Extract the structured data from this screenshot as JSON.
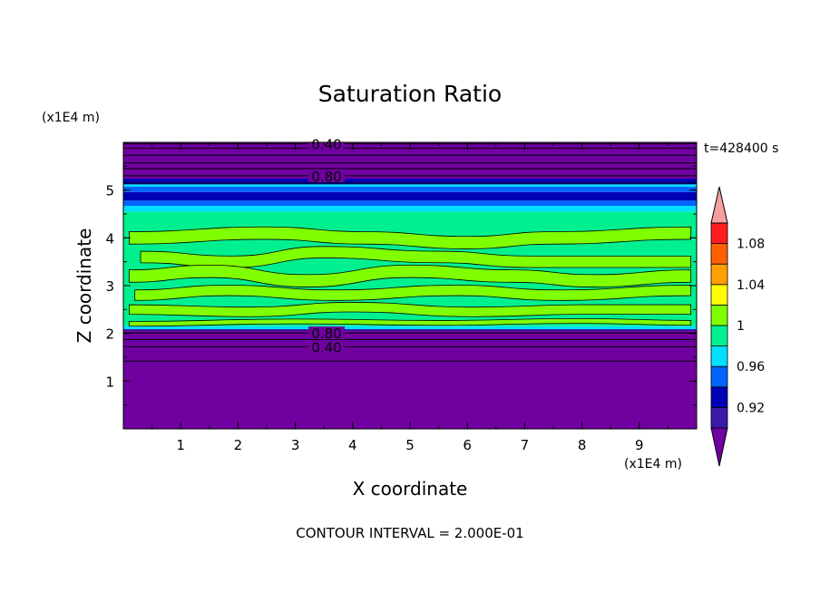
{
  "chart_data": {
    "type": "heatmap",
    "title": "Saturation Ratio",
    "xlabel": "X coordinate",
    "ylabel": "Z coordinate",
    "x_unit": "(x1E4 m)",
    "y_unit": "(x1E4 m)",
    "time_label": "t=428400 s",
    "footer": "CONTOUR INTERVAL = 2.000E-01",
    "xlim": [
      0,
      10
    ],
    "ylim": [
      0,
      6
    ],
    "x_ticks": [
      "1",
      "2",
      "3",
      "4",
      "5",
      "6",
      "7",
      "8",
      "9"
    ],
    "y_ticks": [
      "1",
      "2",
      "3",
      "4",
      "5"
    ],
    "colorbar": {
      "levels": [
        0.9,
        0.92,
        0.94,
        0.96,
        0.98,
        1.0,
        1.02,
        1.04,
        1.06,
        1.08,
        1.1
      ],
      "labels": [
        "0.92",
        "0.96",
        "1",
        "1.04",
        "1.08"
      ],
      "colors": [
        "#7000a0",
        "#3a1aa8",
        "#0000b4",
        "#0064ff",
        "#00e0ff",
        "#00f090",
        "#80ff00",
        "#ffff00",
        "#ffa000",
        "#ff6000",
        "#ff1e1e",
        "#f5a0a0"
      ]
    },
    "bands": [
      {
        "z0": 0.0,
        "z1": 2.05,
        "color": "#7000a0"
      },
      {
        "z0": 2.05,
        "z1": 2.09,
        "color": "#3a1aa8"
      },
      {
        "z0": 2.09,
        "z1": 2.15,
        "color": "#00e0ff"
      },
      {
        "z0": 2.15,
        "z1": 4.55,
        "color": "#00f090"
      },
      {
        "z0": 4.55,
        "z1": 4.67,
        "color": "#00e0ff"
      },
      {
        "z0": 4.67,
        "z1": 4.78,
        "color": "#0064ff"
      },
      {
        "z0": 4.78,
        "z1": 4.96,
        "color": "#0000b4"
      },
      {
        "z0": 4.96,
        "z1": 5.07,
        "color": "#0064ff"
      },
      {
        "z0": 5.07,
        "z1": 5.12,
        "color": "#00e0ff"
      },
      {
        "z0": 5.12,
        "z1": 5.24,
        "color": "#0000b4"
      },
      {
        "z0": 5.24,
        "z1": 6.0,
        "color": "#7000a0"
      }
    ],
    "contour_lines": [
      {
        "z": 1.42,
        "label": ""
      },
      {
        "z": 1.72,
        "label": "0.40"
      },
      {
        "z": 1.87,
        "label": ""
      },
      {
        "z": 2.01,
        "label": "0.80"
      },
      {
        "z": 5.15,
        "label": ""
      },
      {
        "z": 5.3,
        "label": "0.80"
      },
      {
        "z": 5.45,
        "label": ""
      },
      {
        "z": 5.57,
        "label": ""
      },
      {
        "z": 5.73,
        "label": ""
      },
      {
        "z": 5.88,
        "label": ""
      },
      {
        "z": 5.97,
        "label": "0.40"
      }
    ],
    "supersaturated_streaks": [
      {
        "x": [
          0.1,
          2.5,
          4.2,
          6.0,
          7.5,
          9.9
        ],
        "z": [
          4.0,
          4.1,
          4.0,
          3.9,
          4.0,
          4.1
        ],
        "halfwidth": 0.13
      },
      {
        "x": [
          0.3,
          1.9,
          3.5,
          5.5,
          7.1,
          9.9
        ],
        "z": [
          3.6,
          3.5,
          3.7,
          3.6,
          3.5,
          3.5
        ],
        "halfwidth": 0.12
      },
      {
        "x": [
          0.1,
          1.5,
          3.2,
          5.0,
          6.8,
          8.2,
          9.9
        ],
        "z": [
          3.2,
          3.3,
          3.1,
          3.3,
          3.2,
          3.1,
          3.2
        ],
        "halfwidth": 0.13
      },
      {
        "x": [
          0.2,
          1.8,
          3.7,
          5.8,
          7.6,
          9.9
        ],
        "z": [
          2.8,
          2.9,
          2.8,
          2.9,
          2.8,
          2.9
        ],
        "halfwidth": 0.11
      },
      {
        "x": [
          0.1,
          2.2,
          4.0,
          6.1,
          8.1,
          9.9
        ],
        "z": [
          2.5,
          2.45,
          2.55,
          2.45,
          2.5,
          2.5
        ],
        "halfwidth": 0.1
      },
      {
        "x": [
          0.1,
          3.0,
          5.5,
          8.0,
          9.9
        ],
        "z": [
          2.2,
          2.25,
          2.22,
          2.26,
          2.22
        ],
        "halfwidth": 0.05
      }
    ]
  }
}
